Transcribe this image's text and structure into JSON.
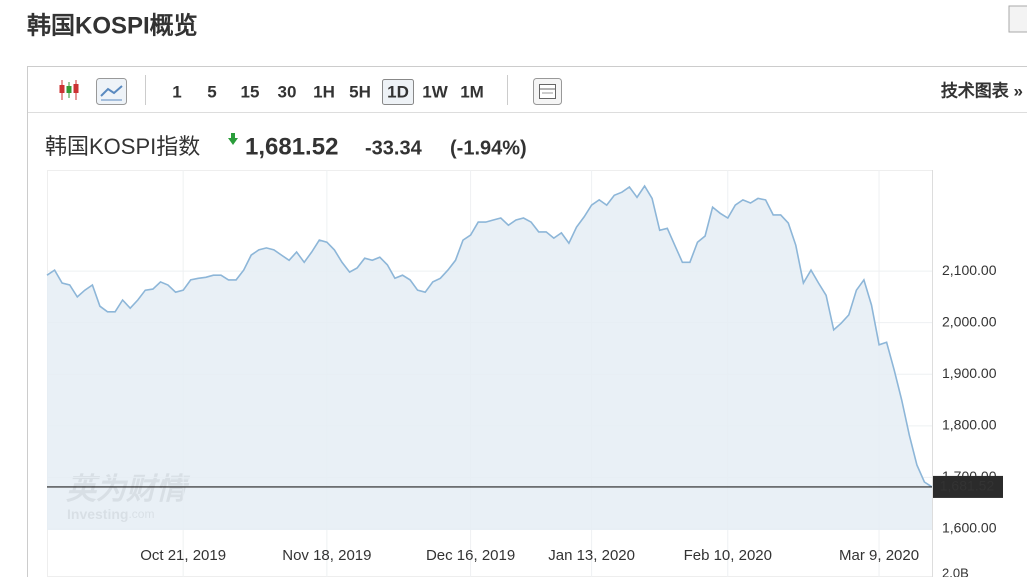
{
  "header": {
    "title": "韩国KOSPI概览"
  },
  "toolbar": {
    "intervals": [
      "1",
      "5",
      "15",
      "30",
      "1H",
      "5H",
      "1D",
      "1W",
      "1M"
    ],
    "active_interval": "1D",
    "link": "技术图表 »"
  },
  "quote": {
    "name": "韩国KOSPI指数",
    "price": "1,681.52",
    "change": "-33.34",
    "change_percent": "(-1.94%)"
  },
  "chart_data": {
    "type": "area",
    "values": [
      2092,
      2102,
      2077,
      2073,
      2050,
      2063,
      2073,
      2032,
      2021,
      2021,
      2044,
      2028,
      2044,
      2063,
      2065,
      2079,
      2073,
      2059,
      2063,
      2083,
      2086,
      2088,
      2092,
      2092,
      2083,
      2083,
      2102,
      2131,
      2141,
      2145,
      2141,
      2131,
      2121,
      2137,
      2117,
      2137,
      2160,
      2156,
      2141,
      2117,
      2098,
      2106,
      2125,
      2121,
      2127,
      2112,
      2086,
      2092,
      2083,
      2063,
      2059,
      2079,
      2086,
      2102,
      2121,
      2160,
      2170,
      2195,
      2195,
      2199,
      2203,
      2189,
      2199,
      2203,
      2195,
      2176,
      2176,
      2164,
      2174,
      2154,
      2185,
      2205,
      2228,
      2238,
      2228,
      2247,
      2253,
      2263,
      2243,
      2265,
      2241,
      2179,
      2183,
      2150,
      2117,
      2117,
      2156,
      2168,
      2224,
      2212,
      2203,
      2228,
      2238,
      2232,
      2241,
      2238,
      2209,
      2209,
      2193,
      2150,
      2077,
      2102,
      2077,
      2053,
      1986,
      1999,
      2015,
      2063,
      2083,
      2034,
      1957,
      1962,
      1908,
      1850,
      1782,
      1724,
      1691,
      1681.52
    ],
    "color": "#8db6d8",
    "fill": "#e5edf4",
    "xlim": [
      0,
      117
    ],
    "xticks": [
      {
        "value": 18,
        "label": "Oct 21, 2019"
      },
      {
        "value": 37,
        "label": "Nov 18, 2019"
      },
      {
        "value": 56,
        "label": "Dec 16, 2019"
      },
      {
        "value": 72,
        "label": "Jan 13, 2020"
      },
      {
        "value": 90,
        "label": "Feb 10, 2020"
      },
      {
        "value": 110,
        "label": "Mar 9, 2020"
      }
    ],
    "ylim": [
      1598,
      2296
    ],
    "yticks": [
      {
        "value": 2100,
        "label": "2,100.00"
      },
      {
        "value": 2000,
        "label": "2,000.00"
      },
      {
        "value": 1900,
        "label": "1,900.00"
      },
      {
        "value": 1800,
        "label": "1,800.00"
      },
      {
        "value": 1700,
        "label": "1,700.00"
      },
      {
        "value": 1600,
        "label": "1,600.00"
      }
    ],
    "grid": true,
    "volume_label": "2.0B",
    "watermark": [
      "英为财情",
      "Investing",
      ".com"
    ]
  }
}
